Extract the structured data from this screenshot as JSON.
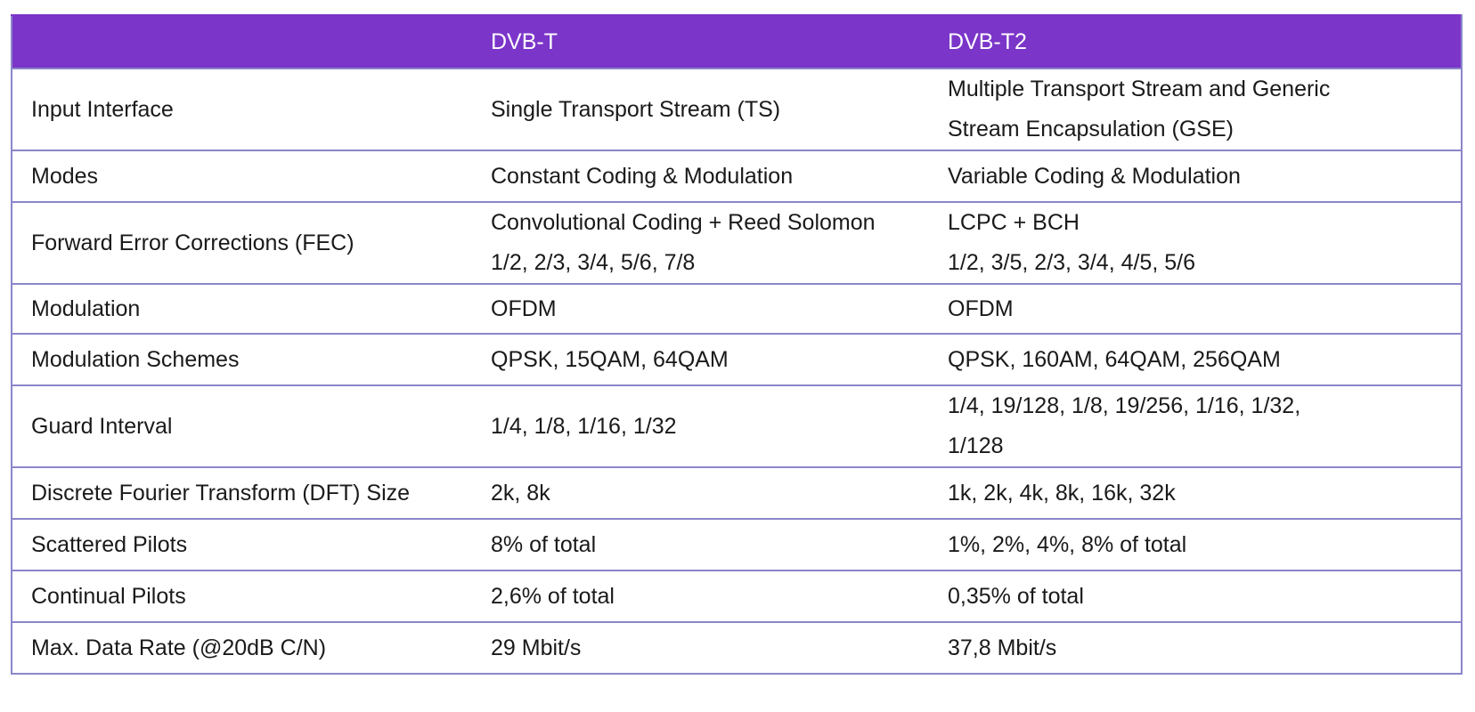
{
  "table": {
    "header": {
      "col0": "",
      "col1": "DVB-T",
      "col2": "DVB-T2"
    },
    "rows": [
      {
        "label": "Input Interface",
        "dvbt": [
          "Single Transport Stream (TS)"
        ],
        "dvbt2": [
          "Multiple Transport Stream and Generic",
          "Stream Encapsulation (GSE)"
        ]
      },
      {
        "label": "Modes",
        "dvbt": [
          "Constant Coding & Modulation"
        ],
        "dvbt2": [
          "Variable Coding & Modulation"
        ]
      },
      {
        "label": "Forward Error Corrections (FEC)",
        "dvbt": [
          "Convolutional Coding + Reed Solomon",
          "1/2, 2/3, 3/4, 5/6, 7/8"
        ],
        "dvbt2": [
          "LCPC + BCH",
          "1/2, 3/5, 2/3, 3/4, 4/5, 5/6"
        ]
      },
      {
        "label": "Modulation",
        "dvbt": [
          "OFDM"
        ],
        "dvbt2": [
          "OFDM"
        ]
      },
      {
        "label": "Modulation Schemes",
        "dvbt": [
          "QPSK, 15QAM, 64QAM"
        ],
        "dvbt2": [
          "QPSK, 160AM, 64QAM, 256QAM"
        ]
      },
      {
        "label": "Guard Interval",
        "dvbt": [
          "1/4, 1/8, 1/16, 1/32"
        ],
        "dvbt2": [
          "1/4, 19/128, 1/8, 19/256, 1/16, 1/32,",
          "1/128"
        ]
      },
      {
        "label": "Discrete Fourier Transform (DFT) Size",
        "dvbt": [
          "2k, 8k"
        ],
        "dvbt2": [
          "1k, 2k, 4k, 8k, 16k, 32k"
        ]
      },
      {
        "label": "Scattered Pilots",
        "dvbt": [
          "8% of total"
        ],
        "dvbt2": [
          "1%, 2%, 4%, 8% of total"
        ]
      },
      {
        "label": "Continual Pilots",
        "dvbt": [
          "2,6% of total"
        ],
        "dvbt2": [
          "0,35% of total"
        ]
      },
      {
        "label": "Max. Data Rate (@20dB C/N)",
        "dvbt": [
          "29 Mbit/s"
        ],
        "dvbt2": [
          "37,8 Mbit/s"
        ]
      }
    ]
  },
  "colors": {
    "header_bg": "#7b35c9",
    "header_text": "#ffffff",
    "border": "#8b86c9"
  }
}
